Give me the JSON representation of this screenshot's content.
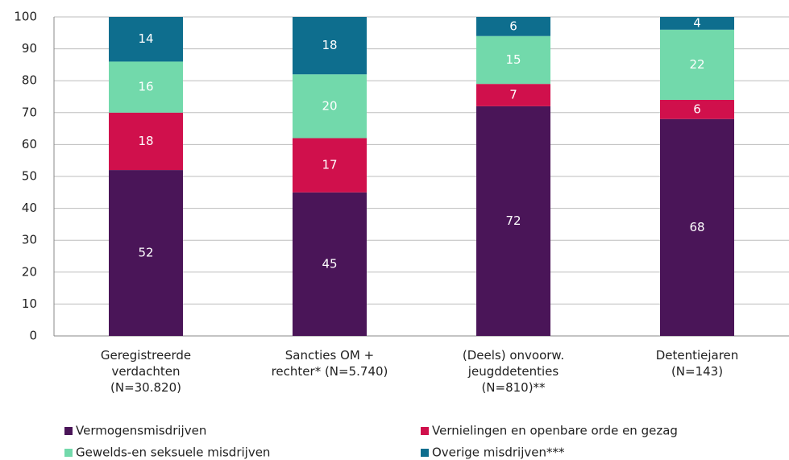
{
  "chart_data": {
    "type": "stacked_bar",
    "categories": [
      "Geregistreerde\nverdachten\n(N=30.820)",
      "Sancties OM +\nrechter* (N=5.740)",
      "(Deels) onvoorw.\njeugddetenties\n(N=810)**",
      "Detentiejaren\n(N=143)"
    ],
    "series": [
      {
        "name": "Vermogensmisdrijven",
        "color": "#4a1558",
        "values": [
          52,
          45,
          72,
          68
        ]
      },
      {
        "name": "Vernielingen en openbare orde en gezag",
        "color": "#d0104c",
        "values": [
          18,
          17,
          7,
          6
        ]
      },
      {
        "name": "Gewelds-en seksuele misdrijven",
        "color": "#72d9ab",
        "values": [
          16,
          20,
          15,
          22
        ]
      },
      {
        "name": "Overige misdrijven***",
        "color": "#0e6e8e",
        "values": [
          14,
          18,
          6,
          4
        ]
      }
    ],
    "ylim": [
      0,
      100
    ],
    "yticks": [
      0,
      10,
      20,
      30,
      40,
      50,
      60,
      70,
      80,
      90,
      100
    ],
    "grid": true
  }
}
